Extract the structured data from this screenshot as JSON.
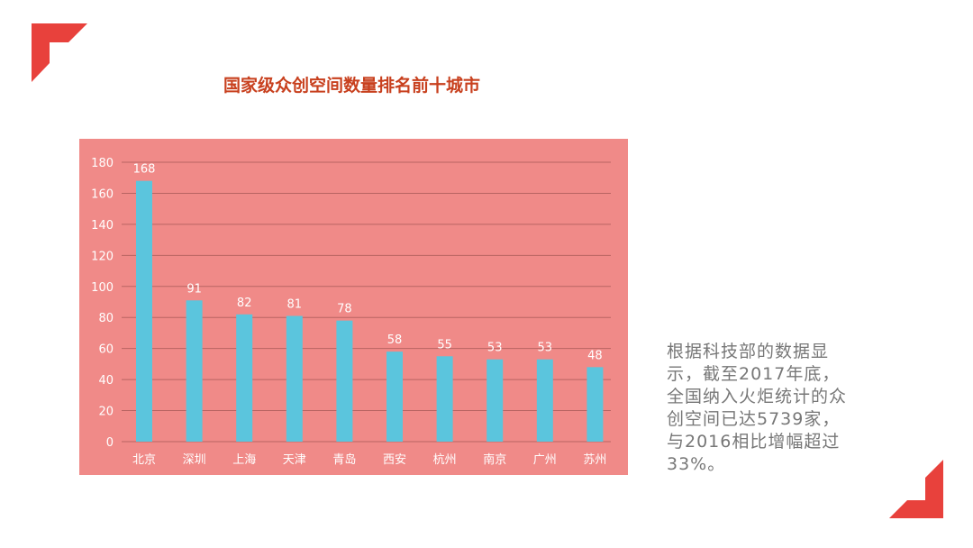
{
  "title": "国家级众创空间数量排名前十城市",
  "note": "根据科技部的数据显示，截至2017年底，全国纳入火炬统计的众创空间已达5739家，与2016相比增幅超过33%。",
  "colors": {
    "background_panel": "#f08a88",
    "bar": "#5bc5dd",
    "accent": "#e8413c",
    "title": "#c8401e"
  },
  "chart_data": {
    "type": "bar",
    "title": "国家级众创空间数量排名前十城市",
    "categories": [
      "北京",
      "深圳",
      "上海",
      "天津",
      "青岛",
      "西安",
      "杭州",
      "南京",
      "广州",
      "苏州"
    ],
    "values": [
      168,
      91,
      82,
      81,
      78,
      58,
      55,
      53,
      53,
      48
    ],
    "ylim": [
      0,
      180
    ],
    "yticks": [
      0,
      20,
      40,
      60,
      80,
      100,
      120,
      140,
      160,
      180
    ],
    "grid": true,
    "data_labels": true
  }
}
